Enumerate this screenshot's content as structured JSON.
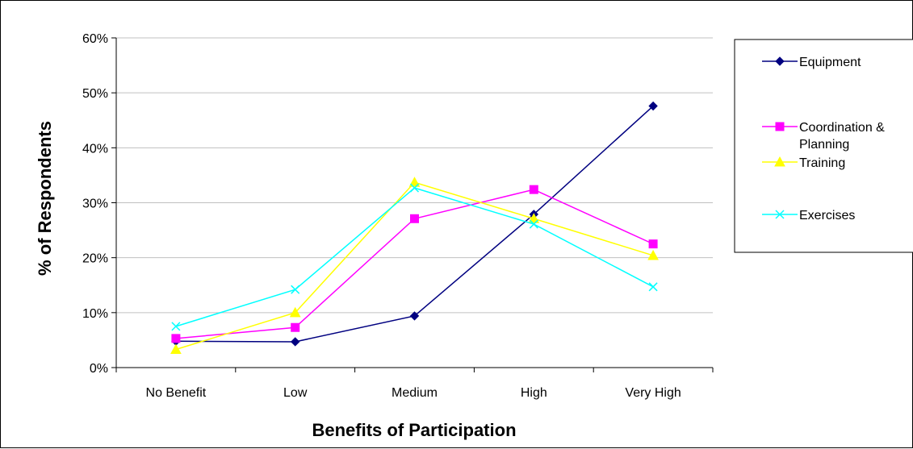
{
  "chart_data": {
    "type": "line",
    "title": "",
    "xlabel": "Benefits of Participation",
    "ylabel": "% of Respondents",
    "categories": [
      "No Benefit",
      "Low",
      "Medium",
      "High",
      "Very High"
    ],
    "ylim": [
      0,
      60
    ],
    "yticks": [
      "0%",
      "10%",
      "20%",
      "30%",
      "40%",
      "50%",
      "60%"
    ],
    "grid": true,
    "legend_position": "right",
    "series": [
      {
        "name": "Equipment",
        "color": "#000080",
        "marker": "diamond",
        "values": [
          4.8,
          4.7,
          9.4,
          27.9,
          47.6
        ]
      },
      {
        "name": "Coordination & Planning",
        "legend_lines": [
          "Coordination &",
          "Planning"
        ],
        "color": "#FF00FF",
        "marker": "square",
        "values": [
          5.3,
          7.3,
          27.1,
          32.4,
          22.5
        ]
      },
      {
        "name": "Training",
        "color": "#FFFF00",
        "marker": "triangle",
        "values": [
          3.3,
          10.0,
          33.7,
          27.1,
          20.4
        ]
      },
      {
        "name": "Exercises",
        "color": "#00FFFF",
        "marker": "x",
        "values": [
          7.5,
          14.2,
          32.7,
          26.1,
          14.7
        ]
      }
    ]
  }
}
